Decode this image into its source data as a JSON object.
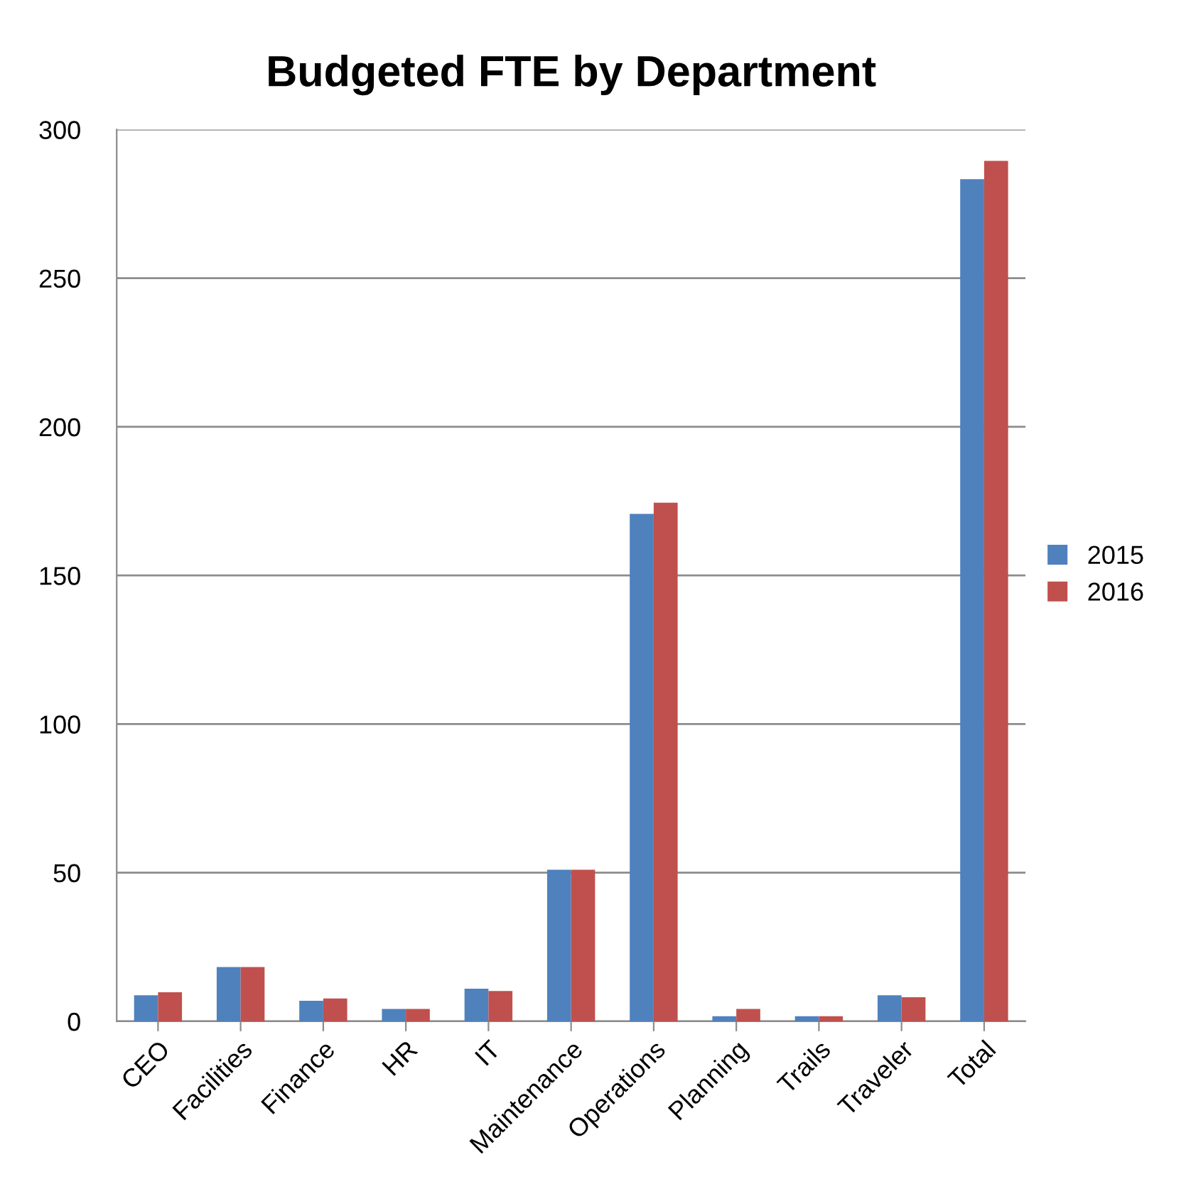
{
  "chart_data": {
    "type": "bar",
    "title": "Budgeted FTE by Department",
    "categories": [
      "CEO",
      "Facilities",
      "Finance",
      "HR",
      "IT",
      "Maintenance",
      "Operations",
      "Planning",
      "Trails",
      "Traveler",
      "Total"
    ],
    "series": [
      {
        "name": "2015",
        "color": "#4f81bd",
        "values": [
          8.8,
          18.3,
          6.9,
          4.2,
          11,
          51,
          170.7,
          1.7,
          1.7,
          8.8,
          283.3
        ]
      },
      {
        "name": "2016",
        "color": "#c0504d",
        "values": [
          9.8,
          18.3,
          7.7,
          4.2,
          10.2,
          51,
          174.5,
          4.2,
          1.7,
          8.1,
          289.5
        ]
      }
    ],
    "ylim": [
      0,
      300
    ],
    "yticks": [
      0,
      50,
      100,
      150,
      200,
      250,
      300
    ],
    "grid": "y",
    "legend": "right"
  }
}
